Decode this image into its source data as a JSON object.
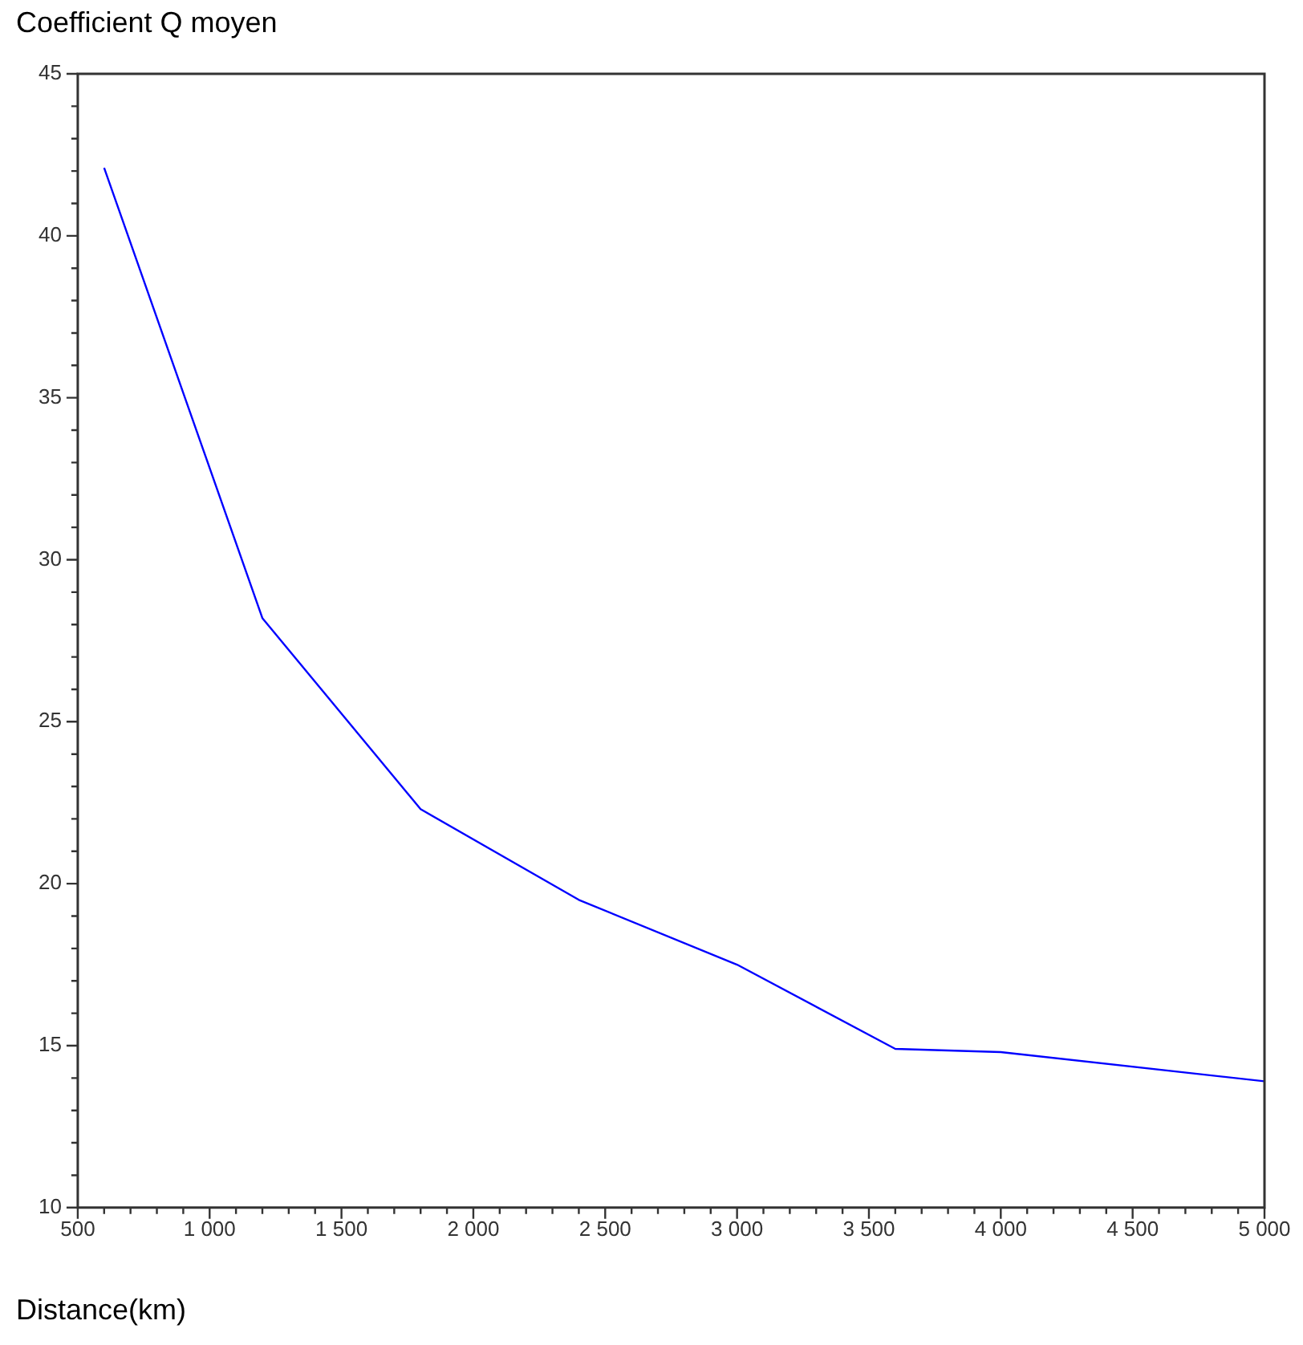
{
  "chart_data": {
    "type": "line",
    "ylabel": "Coefficient Q moyen",
    "xlabel": "Distance(km)",
    "x": [
      600,
      1200,
      1800,
      2400,
      3000,
      3600,
      4000,
      5000
    ],
    "series": [
      {
        "color": "#0000ff",
        "values": [
          42.1,
          28.2,
          22.3,
          19.5,
          17.5,
          14.9,
          14.8,
          13.9
        ]
      }
    ],
    "xlim": [
      500,
      5000
    ],
    "ylim": [
      10,
      45
    ],
    "xticks": [
      500,
      {
        "value": 600,
        "label": null
      },
      {
        "value": 700,
        "label": null
      },
      {
        "value": 800,
        "label": null
      },
      {
        "value": 900,
        "label": null
      },
      {
        "value": 1000,
        "label": "1 000"
      },
      {
        "value": 1100,
        "label": null
      },
      {
        "value": 1200,
        "label": null
      },
      {
        "value": 1300,
        "label": null
      },
      {
        "value": 1400,
        "label": null
      },
      {
        "value": 1500,
        "label": "1 500"
      },
      {
        "value": 1600,
        "label": null
      },
      {
        "value": 1700,
        "label": null
      },
      {
        "value": 1800,
        "label": null
      },
      {
        "value": 1900,
        "label": null
      },
      {
        "value": 2000,
        "label": "2 000"
      },
      {
        "value": 2100,
        "label": null
      },
      {
        "value": 2200,
        "label": null
      },
      {
        "value": 2300,
        "label": null
      },
      {
        "value": 2400,
        "label": null
      },
      {
        "value": 2500,
        "label": "2 500"
      },
      {
        "value": 2600,
        "label": null
      },
      {
        "value": 2700,
        "label": null
      },
      {
        "value": 2800,
        "label": null
      },
      {
        "value": 2900,
        "label": null
      },
      {
        "value": 3000,
        "label": "3 000"
      },
      {
        "value": 3100,
        "label": null
      },
      {
        "value": 3200,
        "label": null
      },
      {
        "value": 3300,
        "label": null
      },
      {
        "value": 3400,
        "label": null
      },
      {
        "value": 3500,
        "label": "3 500"
      },
      {
        "value": 3600,
        "label": null
      },
      {
        "value": 3700,
        "label": null
      },
      {
        "value": 3800,
        "label": null
      },
      {
        "value": 3900,
        "label": null
      },
      {
        "value": 4000,
        "label": "4 000"
      },
      {
        "value": 4100,
        "label": null
      },
      {
        "value": 4200,
        "label": null
      },
      {
        "value": 4300,
        "label": null
      },
      {
        "value": 4400,
        "label": null
      },
      {
        "value": 4500,
        "label": "4 500"
      },
      {
        "value": 4600,
        "label": null
      },
      {
        "value": 4700,
        "label": null
      },
      {
        "value": 4800,
        "label": null
      },
      {
        "value": 4900,
        "label": null
      },
      {
        "value": 5000,
        "label": "5 000"
      }
    ],
    "yticks": [
      10,
      {
        "value": 11,
        "label": null
      },
      {
        "value": 12,
        "label": null
      },
      {
        "value": 13,
        "label": null
      },
      {
        "value": 14,
        "label": null
      },
      15,
      {
        "value": 16,
        "label": null
      },
      {
        "value": 17,
        "label": null
      },
      {
        "value": 18,
        "label": null
      },
      {
        "value": 19,
        "label": null
      },
      20,
      {
        "value": 21,
        "label": null
      },
      {
        "value": 22,
        "label": null
      },
      {
        "value": 23,
        "label": null
      },
      {
        "value": 24,
        "label": null
      },
      25,
      {
        "value": 26,
        "label": null
      },
      {
        "value": 27,
        "label": null
      },
      {
        "value": 28,
        "label": null
      },
      {
        "value": 29,
        "label": null
      },
      30,
      {
        "value": 31,
        "label": null
      },
      {
        "value": 32,
        "label": null
      },
      {
        "value": 33,
        "label": null
      },
      {
        "value": 34,
        "label": null
      },
      35,
      {
        "value": 36,
        "label": null
      },
      {
        "value": 37,
        "label": null
      },
      {
        "value": 38,
        "label": null
      },
      {
        "value": 39,
        "label": null
      },
      40,
      {
        "value": 41,
        "label": null
      },
      {
        "value": 42,
        "label": null
      },
      {
        "value": 43,
        "label": null
      },
      {
        "value": 44,
        "label": null
      },
      45
    ],
    "grid": false,
    "legend": false,
    "marker": "none",
    "line_style": "solid"
  }
}
